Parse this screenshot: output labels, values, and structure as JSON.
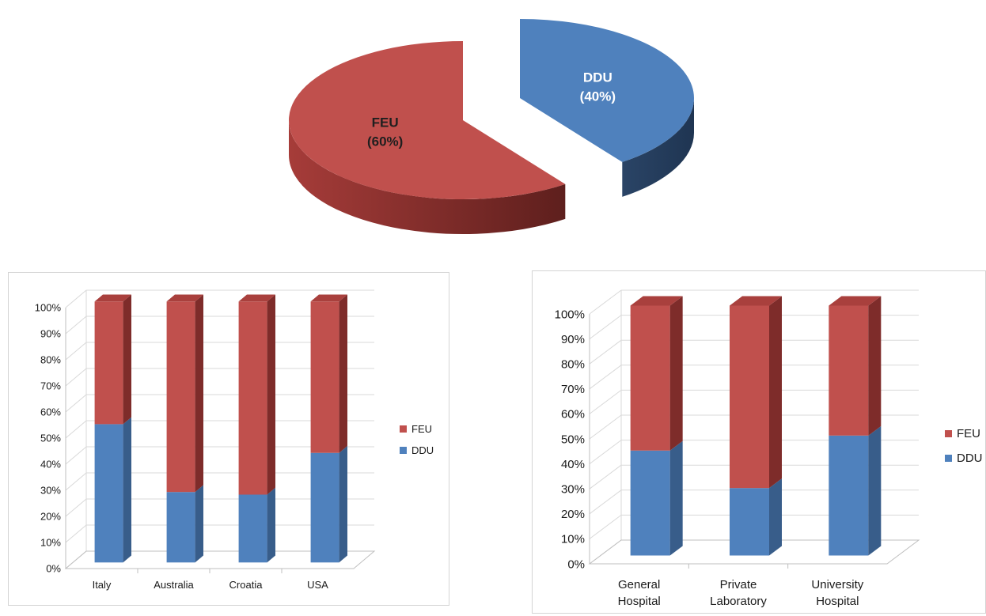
{
  "colors": {
    "feu": "#c0504d",
    "feu_top": "#a9403d",
    "feu_side": "#7e2c2a",
    "ddu": "#4f81bd",
    "ddu_top": "#4474ad",
    "ddu_side": "#385d8a",
    "grid": "#d9d9d9",
    "axis": "#bfbfbf"
  },
  "chart_data": [
    {
      "type": "pie",
      "style": "3d-exploded",
      "slices": [
        {
          "name": "FEU",
          "value": 60,
          "label": "FEU",
          "pct_label": "(60%)"
        },
        {
          "name": "DDU",
          "value": 40,
          "label": "DDU",
          "pct_label": "(40%)"
        }
      ]
    },
    {
      "type": "bar",
      "stacked": "percent",
      "style": "3d",
      "categories": [
        "Italy",
        "Australia",
        "Croatia",
        "USA"
      ],
      "series": [
        {
          "name": "DDU",
          "values": [
            53,
            27,
            26,
            42
          ]
        },
        {
          "name": "FEU",
          "values": [
            47,
            73,
            74,
            58
          ]
        }
      ],
      "yticks": [
        "0%",
        "10%",
        "20%",
        "30%",
        "40%",
        "50%",
        "60%",
        "70%",
        "80%",
        "90%",
        "100%"
      ],
      "ylim": [
        0,
        100
      ],
      "grid": true,
      "legend": {
        "position": "right",
        "entries": [
          "FEU",
          "DDU"
        ]
      }
    },
    {
      "type": "bar",
      "stacked": "percent",
      "style": "3d",
      "categories": [
        [
          "General",
          "Hospital"
        ],
        [
          "Private",
          "Laboratory"
        ],
        [
          "University",
          "Hospital"
        ]
      ],
      "series": [
        {
          "name": "DDU",
          "values": [
            42,
            27,
            48
          ]
        },
        {
          "name": "FEU",
          "values": [
            58,
            73,
            52
          ]
        }
      ],
      "yticks": [
        "0%",
        "10%",
        "20%",
        "30%",
        "40%",
        "50%",
        "60%",
        "70%",
        "80%",
        "90%",
        "100%"
      ],
      "ylim": [
        0,
        100
      ],
      "grid": true,
      "legend": {
        "position": "right",
        "entries": [
          "FEU",
          "DDU"
        ]
      }
    }
  ]
}
